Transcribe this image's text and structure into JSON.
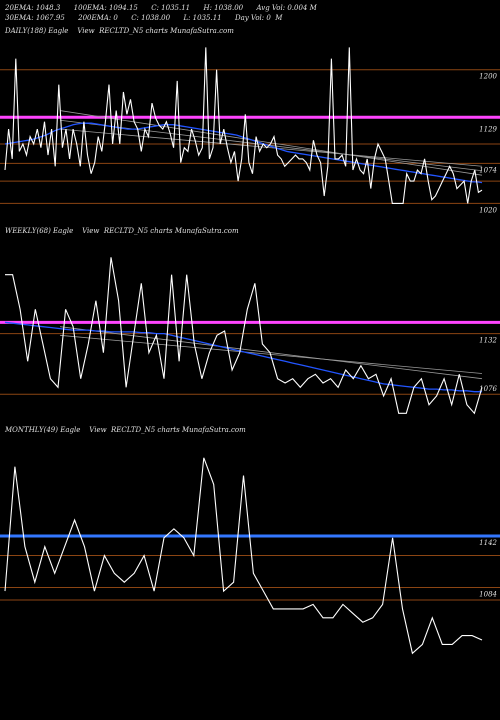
{
  "header": {
    "line1": "20EMA: 1048.3      100EMA: 1094.15      C: 1035.11      H: 1038.00      Avg Vol: 0.004 M",
    "line2": "30EMA: 1067.95      200EMA: 0      C: 1038.00      L: 1035.11      Day Vol: 0  M"
  },
  "colors": {
    "background": "#000000",
    "price": "#ffffff",
    "ema": "#2255ff",
    "magenta_level": "#ff44ff",
    "blue_level": "#3377ff",
    "brown_level": "#8b4513",
    "trend": "#999999"
  },
  "chart_data": [
    {
      "type": "line",
      "label": "DAILY(188) Eagle    View  RECLTD_N5 charts MunafaSutra.com",
      "ylim": [
        995,
        1240
      ],
      "yticks": [
        {
          "value": 1200,
          "label": "1200"
        },
        {
          "value": 1129,
          "label": "1129"
        },
        {
          "value": 1074,
          "label": "1074"
        },
        {
          "value": 1020,
          "label": "1020"
        }
      ],
      "levels": [
        {
          "value": 1200,
          "color": "#8b4513",
          "width": 1
        },
        {
          "value": 1136,
          "color": "#ff44ff",
          "width": 3
        },
        {
          "value": 1100,
          "color": "#8b4513",
          "width": 1
        },
        {
          "value": 1074,
          "color": "#8b4513",
          "width": 1
        },
        {
          "value": 1050,
          "color": "#8b4513",
          "width": 1
        },
        {
          "value": 1020,
          "color": "#8b4513",
          "width": 1
        }
      ],
      "price": [
        1065,
        1120,
        1080,
        1215,
        1090,
        1100,
        1085,
        1110,
        1100,
        1120,
        1095,
        1130,
        1085,
        1120,
        1070,
        1180,
        1095,
        1120,
        1080,
        1120,
        1100,
        1070,
        1130,
        1085,
        1060,
        1075,
        1110,
        1090,
        1130,
        1180,
        1100,
        1145,
        1100,
        1170,
        1140,
        1160,
        1130,
        1120,
        1090,
        1120,
        1110,
        1155,
        1135,
        1125,
        1120,
        1130,
        1115,
        1095,
        1185,
        1075,
        1095,
        1090,
        1120,
        1105,
        1085,
        1095,
        1230,
        1080,
        1095,
        1200,
        1100,
        1120,
        1095,
        1075,
        1090,
        1050,
        1080,
        1140,
        1075,
        1060,
        1110,
        1090,
        1100,
        1095,
        1100,
        1110,
        1085,
        1080,
        1070,
        1075,
        1080,
        1085,
        1080,
        1080,
        1075,
        1065,
        1105,
        1085,
        1075,
        1030,
        1070,
        1215,
        1080,
        1080,
        1085,
        1070,
        1230,
        1065,
        1080,
        1065,
        1060,
        1080,
        1040,
        1080,
        1100,
        1090,
        1080,
        1050,
        1020,
        1020,
        1020,
        1020,
        1060,
        1050,
        1050,
        1065,
        1060,
        1080,
        1050,
        1025,
        1030,
        1040,
        1050,
        1060,
        1070,
        1060,
        1040,
        1045,
        1050,
        1020,
        1050,
        1065,
        1035,
        1038
      ],
      "ema": [
        1100,
        1101,
        1102,
        1103,
        1104,
        1105,
        1106,
        1108,
        1110,
        1112,
        1115,
        1118,
        1120,
        1122,
        1124,
        1126,
        1127,
        1128,
        1128,
        1128,
        1127,
        1126,
        1125,
        1124,
        1123,
        1122,
        1121,
        1120,
        1120,
        1120,
        1121,
        1122,
        1123,
        1124,
        1125,
        1126,
        1126,
        1126,
        1125,
        1124,
        1123,
        1122,
        1121,
        1120,
        1119,
        1118,
        1117,
        1116,
        1115,
        1114,
        1113,
        1112,
        1110,
        1108,
        1106,
        1104,
        1102,
        1100,
        1098,
        1096,
        1094,
        1092,
        1090,
        1089,
        1088,
        1087,
        1086,
        1085,
        1084,
        1083,
        1082,
        1081,
        1080,
        1079,
        1078,
        1077,
        1076,
        1075,
        1074,
        1073,
        1072,
        1071,
        1070,
        1069,
        1068,
        1067,
        1066,
        1065,
        1064,
        1063,
        1062,
        1061,
        1060,
        1059,
        1058,
        1057,
        1056,
        1055,
        1054,
        1053,
        1052,
        1051,
        1050,
        1049,
        1049,
        1048
      ],
      "trend": [
        [
          1145,
          1058
        ],
        [
          1132,
          1064
        ],
        [
          1120,
          1070
        ]
      ]
    },
    {
      "type": "line",
      "label": "WEEKLY(68) Eagle    View  RECLTD_N5 charts MunafaSutra.com",
      "ylim": [
        1030,
        1240
      ],
      "yticks": [
        {
          "value": 1132,
          "label": "1132"
        },
        {
          "value": 1076,
          "label": "1076"
        }
      ],
      "levels": [
        {
          "value": 1145,
          "color": "#ff44ff",
          "width": 3
        },
        {
          "value": 1132,
          "color": "#8b4513",
          "width": 1
        },
        {
          "value": 1062,
          "color": "#8b4513",
          "width": 1
        }
      ],
      "price": [
        1200,
        1200,
        1160,
        1100,
        1160,
        1120,
        1080,
        1070,
        1160,
        1140,
        1080,
        1120,
        1170,
        1110,
        1220,
        1170,
        1070,
        1130,
        1190,
        1110,
        1130,
        1080,
        1200,
        1100,
        1200,
        1120,
        1080,
        1110,
        1130,
        1135,
        1090,
        1110,
        1160,
        1190,
        1120,
        1110,
        1080,
        1075,
        1080,
        1070,
        1080,
        1085,
        1075,
        1080,
        1070,
        1090,
        1080,
        1095,
        1080,
        1085,
        1060,
        1080,
        1040,
        1040,
        1070,
        1080,
        1050,
        1060,
        1080,
        1050,
        1085,
        1050,
        1040,
        1070
      ],
      "ema": [
        1145,
        1144,
        1143,
        1142,
        1141,
        1140,
        1139,
        1138,
        1137,
        1136,
        1136,
        1136,
        1135,
        1135,
        1134,
        1134,
        1134,
        1134,
        1133,
        1133,
        1132,
        1132,
        1130,
        1128,
        1126,
        1124,
        1122,
        1120,
        1118,
        1116,
        1114,
        1112,
        1110,
        1108,
        1106,
        1104,
        1102,
        1100,
        1098,
        1096,
        1094,
        1092,
        1090,
        1088,
        1086,
        1084,
        1082,
        1080,
        1078,
        1076,
        1074,
        1073,
        1072,
        1071,
        1070,
        1069,
        1068,
        1068,
        1067,
        1067,
        1066,
        1066,
        1065,
        1065
      ],
      "trend": [
        [
          1140,
          1080
        ],
        [
          1130,
          1086
        ]
      ]
    },
    {
      "type": "line",
      "label": "MONTHLY(49) Eagle    View  RECLTD_N5 charts MunafaSutra.com",
      "ylim": [
        980,
        1250
      ],
      "yticks": [
        {
          "value": 1142,
          "label": "1142"
        },
        {
          "value": 1084,
          "label": "1084"
        }
      ],
      "levels": [
        {
          "value": 1142,
          "color": "#3377ff",
          "width": 3
        },
        {
          "value": 1120,
          "color": "#8b4513",
          "width": 1
        },
        {
          "value": 1084,
          "color": "#8b4513",
          "width": 1
        },
        {
          "value": 1070,
          "color": "#8b4513",
          "width": 1
        }
      ],
      "price": [
        1080,
        1220,
        1130,
        1090,
        1130,
        1100,
        1130,
        1160,
        1130,
        1080,
        1120,
        1100,
        1090,
        1100,
        1120,
        1080,
        1140,
        1150,
        1140,
        1120,
        1230,
        1200,
        1080,
        1090,
        1210,
        1100,
        1080,
        1060,
        1060,
        1060,
        1060,
        1065,
        1050,
        1050,
        1065,
        1055,
        1045,
        1050,
        1065,
        1140,
        1060,
        1010,
        1020,
        1050,
        1020,
        1020,
        1030,
        1030,
        1025
      ]
    }
  ]
}
